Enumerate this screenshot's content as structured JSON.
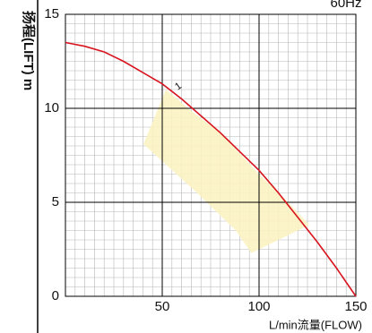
{
  "chart_data": {
    "type": "line",
    "frequency_label": "60Hz",
    "y_label": "扬程(LIFT) m",
    "x_label": "L/min流量(FLOW)",
    "xlim": [
      0,
      150
    ],
    "xticks": [
      50,
      100,
      150
    ],
    "ylim": [
      0,
      15
    ],
    "yticks": [
      0,
      5,
      10,
      15
    ],
    "grid": true,
    "minor_grid": true,
    "x": [
      0,
      10,
      20,
      30,
      40,
      50,
      60,
      70,
      80,
      90,
      100,
      110,
      120,
      130,
      140,
      150
    ],
    "series": [
      {
        "name": "1",
        "color": "#d8141e",
        "values": [
          13.5,
          13.3,
          13.0,
          12.5,
          11.9,
          11.3,
          10.5,
          9.6,
          8.7,
          7.7,
          6.7,
          5.5,
          4.2,
          2.9,
          1.5,
          0
        ]
      }
    ],
    "region": {
      "color": "#fbf3c2",
      "x": [
        40.3,
        51.9,
        65.7,
        80,
        100,
        115,
        126,
        96,
        88,
        68,
        52
      ],
      "y": [
        8.1,
        11.0,
        9.8,
        8.7,
        6.5,
        5.0,
        3.8,
        2.3,
        3.5,
        5.5,
        7.0
      ]
    }
  }
}
